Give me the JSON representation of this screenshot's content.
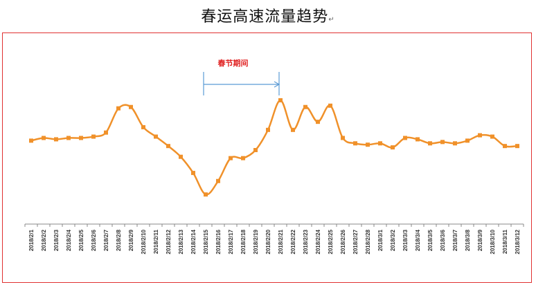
{
  "title": "春运高速流量趋势",
  "return_mark": "↵",
  "annotation": {
    "label": "春节期间",
    "start": "2018/2/15",
    "end": "2018/2/21",
    "label_color": "#e02020",
    "arrow_color": "#5b9bd5"
  },
  "colors": {
    "line": "#f0912a",
    "frame": "#e03030",
    "axis": "#888888"
  },
  "chart_data": {
    "type": "line",
    "title": "春运高速流量趋势",
    "xlabel": "",
    "ylabel": "",
    "grid": false,
    "legend": "none",
    "ylim": [
      0,
      110
    ],
    "categories": [
      "2018/2/1",
      "2018/2/2",
      "2018/2/3",
      "2018/2/4",
      "2018/2/5",
      "2018/2/6",
      "2018/2/7",
      "2018/2/8",
      "2018/2/9",
      "2018/2/10",
      "2018/2/11",
      "2018/2/12",
      "2018/2/13",
      "2018/2/14",
      "2018/2/15",
      "2018/2/16",
      "2018/2/17",
      "2018/2/18",
      "2018/2/19",
      "2018/2/20",
      "2018/2/21",
      "2018/2/22",
      "2018/2/23",
      "2018/2/24",
      "2018/2/25",
      "2018/2/26",
      "2018/2/27",
      "2018/2/28",
      "2018/3/1",
      "2018/3/2",
      "2018/3/3",
      "2018/3/4",
      "2018/3/5",
      "2018/3/6",
      "2018/3/7",
      "2018/3/8",
      "2018/3/9",
      "2018/3/10",
      "2018/3/11",
      "2018/3/12"
    ],
    "series": [
      {
        "values": [
          62,
          64,
          63,
          64,
          64,
          65,
          68,
          86,
          87,
          72,
          65,
          58,
          50,
          38,
          22,
          32,
          49,
          49,
          55,
          70,
          92,
          70,
          87,
          76,
          88,
          64,
          60,
          59,
          60,
          57,
          64,
          63,
          60,
          61,
          60,
          62,
          66,
          65,
          58,
          58
        ]
      }
    ]
  }
}
